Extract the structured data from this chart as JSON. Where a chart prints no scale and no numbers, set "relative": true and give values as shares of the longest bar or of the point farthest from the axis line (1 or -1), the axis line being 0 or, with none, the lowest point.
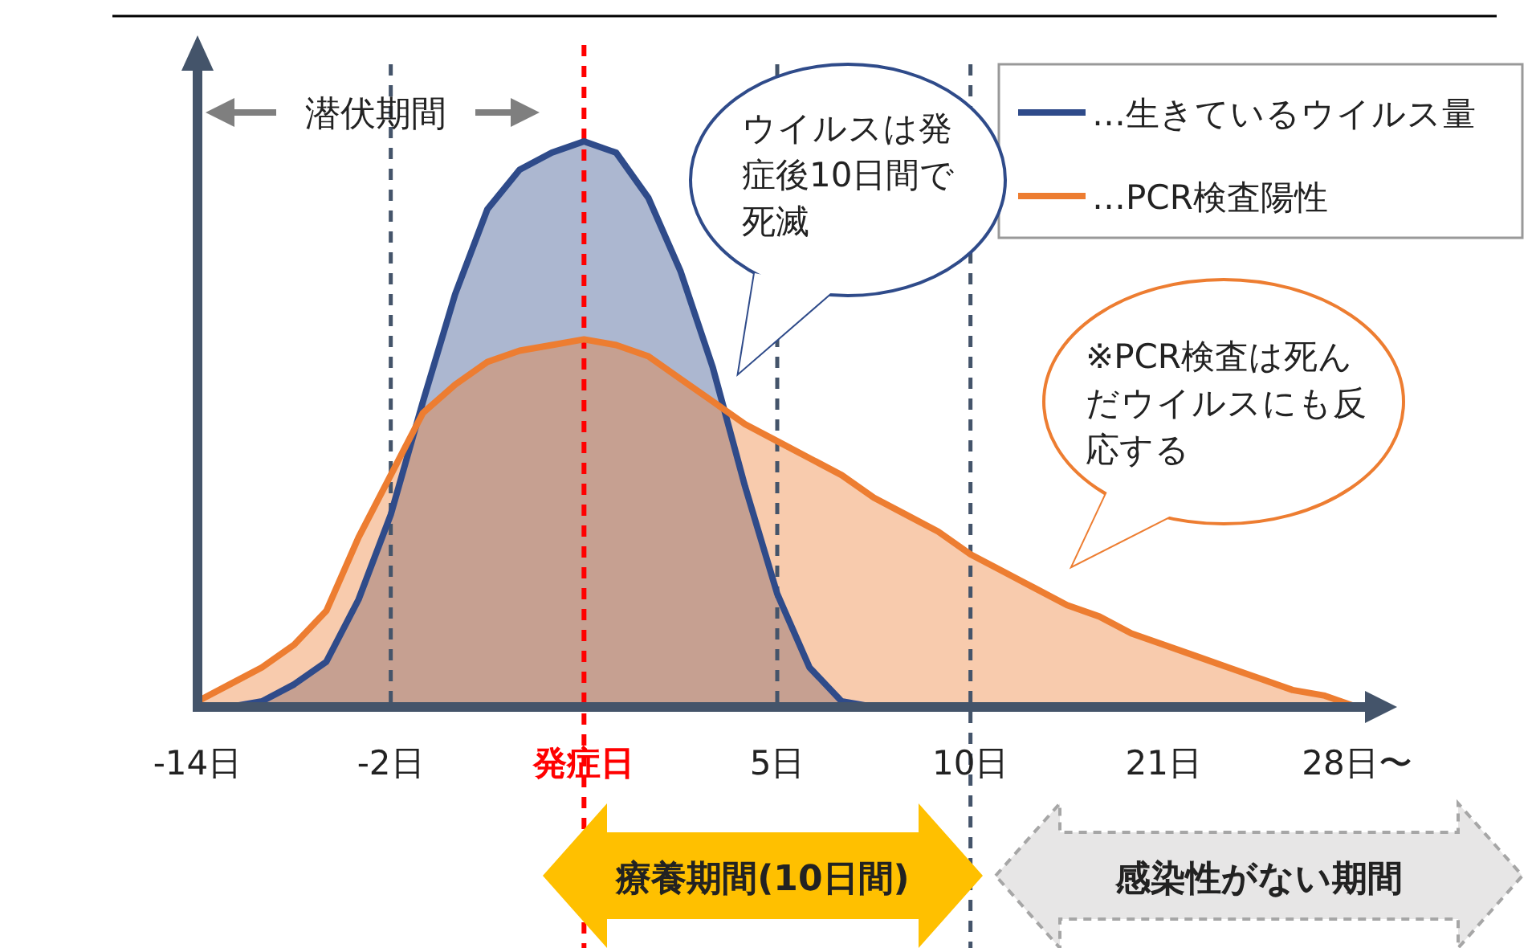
{
  "chart_data": {
    "type": "area",
    "relative": true,
    "categories": [
      "-14日",
      null,
      null,
      null,
      null,
      null,
      "-2日",
      null,
      null,
      null,
      null,
      null,
      "発症日",
      null,
      null,
      null,
      null,
      null,
      "5日",
      null,
      null,
      null,
      null,
      null,
      "10日",
      null,
      null,
      null,
      null,
      null,
      "21日",
      null,
      null,
      null,
      null,
      null,
      "28日〜"
    ],
    "series": [
      {
        "name": "…生きているウイルス量",
        "color": "#2f4b8a",
        "values": [
          0,
          0,
          0.01,
          0.04,
          0.08,
          0.19,
          0.34,
          0.54,
          0.73,
          0.88,
          0.95,
          0.98,
          1,
          0.98,
          0.9,
          0.77,
          0.6,
          0.39,
          0.2,
          0.07,
          0.01,
          0,
          0,
          null,
          null,
          null,
          null,
          null,
          null,
          null,
          null,
          null,
          null,
          null,
          null,
          null,
          null
        ]
      },
      {
        "name": "…PCR検査陽性",
        "color": "#ed7d31",
        "values": [
          0.01,
          0.04,
          0.07,
          0.11,
          0.17,
          0.3,
          0.41,
          0.52,
          0.57,
          0.61,
          0.63,
          0.64,
          0.65,
          0.64,
          0.62,
          0.58,
          0.54,
          0.5,
          0.47,
          0.44,
          0.41,
          0.37,
          0.34,
          0.31,
          0.27,
          0.24,
          0.21,
          0.18,
          0.16,
          0.13,
          0.11,
          0.09,
          0.07,
          0.05,
          0.03,
          0.02,
          0
        ]
      }
    ],
    "ref_lines": [
      {
        "axis": "x",
        "value": "-2日",
        "color": "#44546a",
        "line_style": "dashed"
      },
      {
        "axis": "x",
        "value": "発症日",
        "color": "#ff0000",
        "line_style": "dashed"
      },
      {
        "axis": "x",
        "value": "5日",
        "color": "#44546a",
        "line_style": "dashed"
      },
      {
        "axis": "x",
        "value": "10日",
        "color": "#44546a",
        "line_style": "dashed"
      }
    ],
    "legend": "top right",
    "annotations": [
      "潜伏期間",
      "ウイルスは発症後10日間で死滅",
      "※PCR検査は死んだウイルスにも反応する",
      "療養期間(10日間)",
      "感染性がない期間"
    ]
  }
}
